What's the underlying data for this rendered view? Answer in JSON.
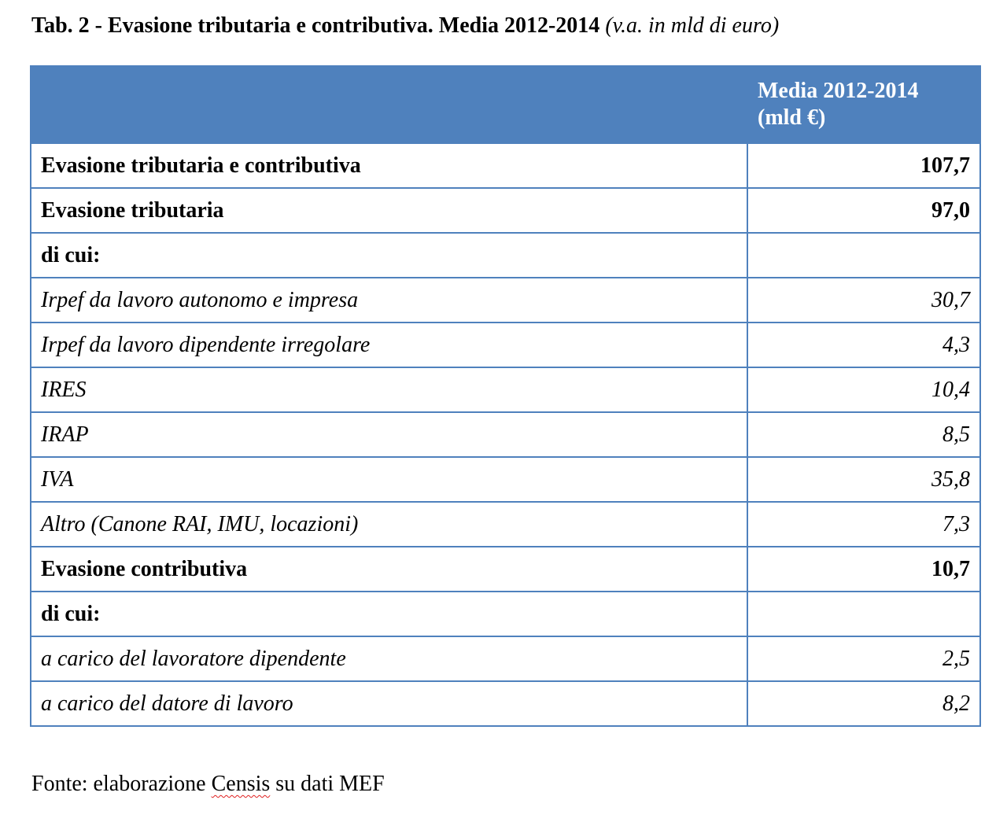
{
  "title": {
    "main": "Tab. 2 - Evasione tributaria e contributiva. Media 2012-2014",
    "unit": "(v.a. in mld di euro)"
  },
  "table": {
    "header": {
      "label": "",
      "value_line1": "Media 2012-2014",
      "value_line2": "(mld €)"
    },
    "rows": [
      {
        "label": "Evasione tributaria e contributiva",
        "value": "107,7",
        "style": "bold"
      },
      {
        "label": "Evasione tributaria",
        "value": "97,0",
        "style": "bold"
      },
      {
        "label": "di cui:",
        "value": "",
        "style": "bold"
      },
      {
        "label": "Irpef da lavoro autonomo e impresa",
        "value": "30,7",
        "style": "italic"
      },
      {
        "label": "Irpef da lavoro dipendente irregolare",
        "value": "4,3",
        "style": "italic"
      },
      {
        "label": "IRES",
        "value": "10,4",
        "style": "italic"
      },
      {
        "label": "IRAP",
        "value": "8,5",
        "style": "italic"
      },
      {
        "label": "IVA",
        "value": "35,8",
        "style": "italic"
      },
      {
        "label": "Altro (Canone RAI, IMU, locazioni)",
        "value": "7,3",
        "style": "italic"
      },
      {
        "label": "Evasione contributiva",
        "value": "10,7",
        "style": "bold"
      },
      {
        "label": "di cui:",
        "value": "",
        "style": "bold"
      },
      {
        "label": "a  carico del lavoratore dipendente",
        "value": "2,5",
        "style": "italic"
      },
      {
        "label": "a carico del datore di lavoro",
        "value": "8,2",
        "style": "italic"
      }
    ]
  },
  "source": {
    "prefix": "Fonte: elaborazione ",
    "spell_word": "Censis",
    "suffix": " su dati MEF"
  },
  "colors": {
    "header_bg": "#4f81bd",
    "border": "#4f81bd",
    "header_text": "#ffffff"
  }
}
